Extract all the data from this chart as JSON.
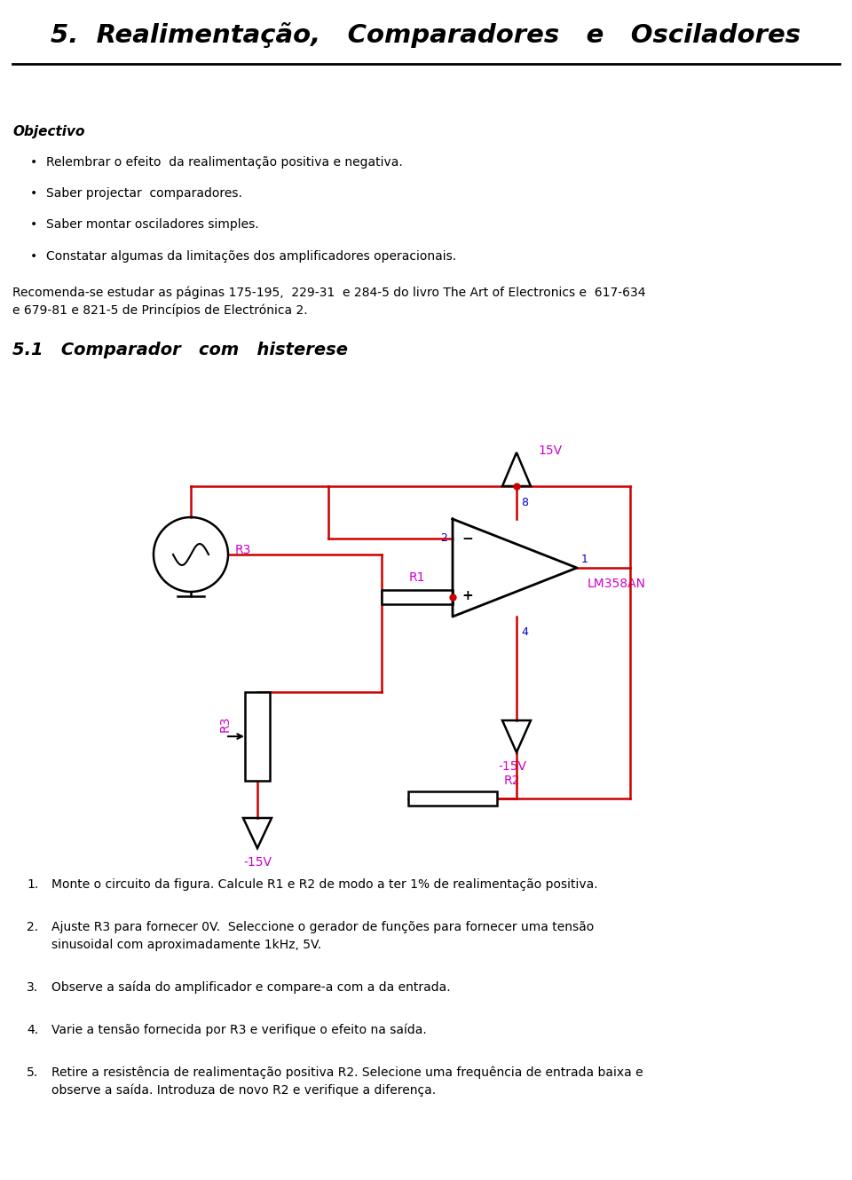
{
  "title": "5.  Realimentação,   Comparadores   e   Osciladores",
  "bg_color": "#ffffff",
  "wire_color": "#cc0000",
  "label_color": "#cc00cc",
  "pin_color": "#0000cc",
  "section_title": "5.1   Comparador   com   histerese",
  "objectivo_label": "Objectivo",
  "bullets": [
    "Relembrar o efeito  da realimentação positiva e negativa.",
    "Saber projectar  comparadores.",
    "Saber montar osciladores simples.",
    "Constatar algumas da limitações dos amplificadores operacionais."
  ],
  "recomenda": [
    "Recomenda-se estudar as páginas 175-195,  229-31  e 284-5 do livro The Art of Electronics e  617-634",
    "e 679-81 e 821-5 de Princípios de Electrónica 2."
  ],
  "instructions": [
    [
      "1.",
      "Monte o circuito da figura. Calcule R1 e R2 de modo a ter 1% de realimentação positiva."
    ],
    [
      "2.",
      "Ajuste R3 para fornecer 0V.  Seleccione o gerador de funções para fornecer uma tensão\nsinusoidal com aproximadamente 1kHz, 5V."
    ],
    [
      "3.",
      "Observe a saída do amplificador e compare-a com a da entrada."
    ],
    [
      "4.",
      "Varie a tensão fornecida por R3 e verifique o efeito na saída."
    ],
    [
      "5.",
      "Retire a resistência de realimentação positiva R2. Selecione uma frequência de entrada baixa e\nobserve a saída. Introduza de novo R2 e verifique a diferença."
    ]
  ]
}
